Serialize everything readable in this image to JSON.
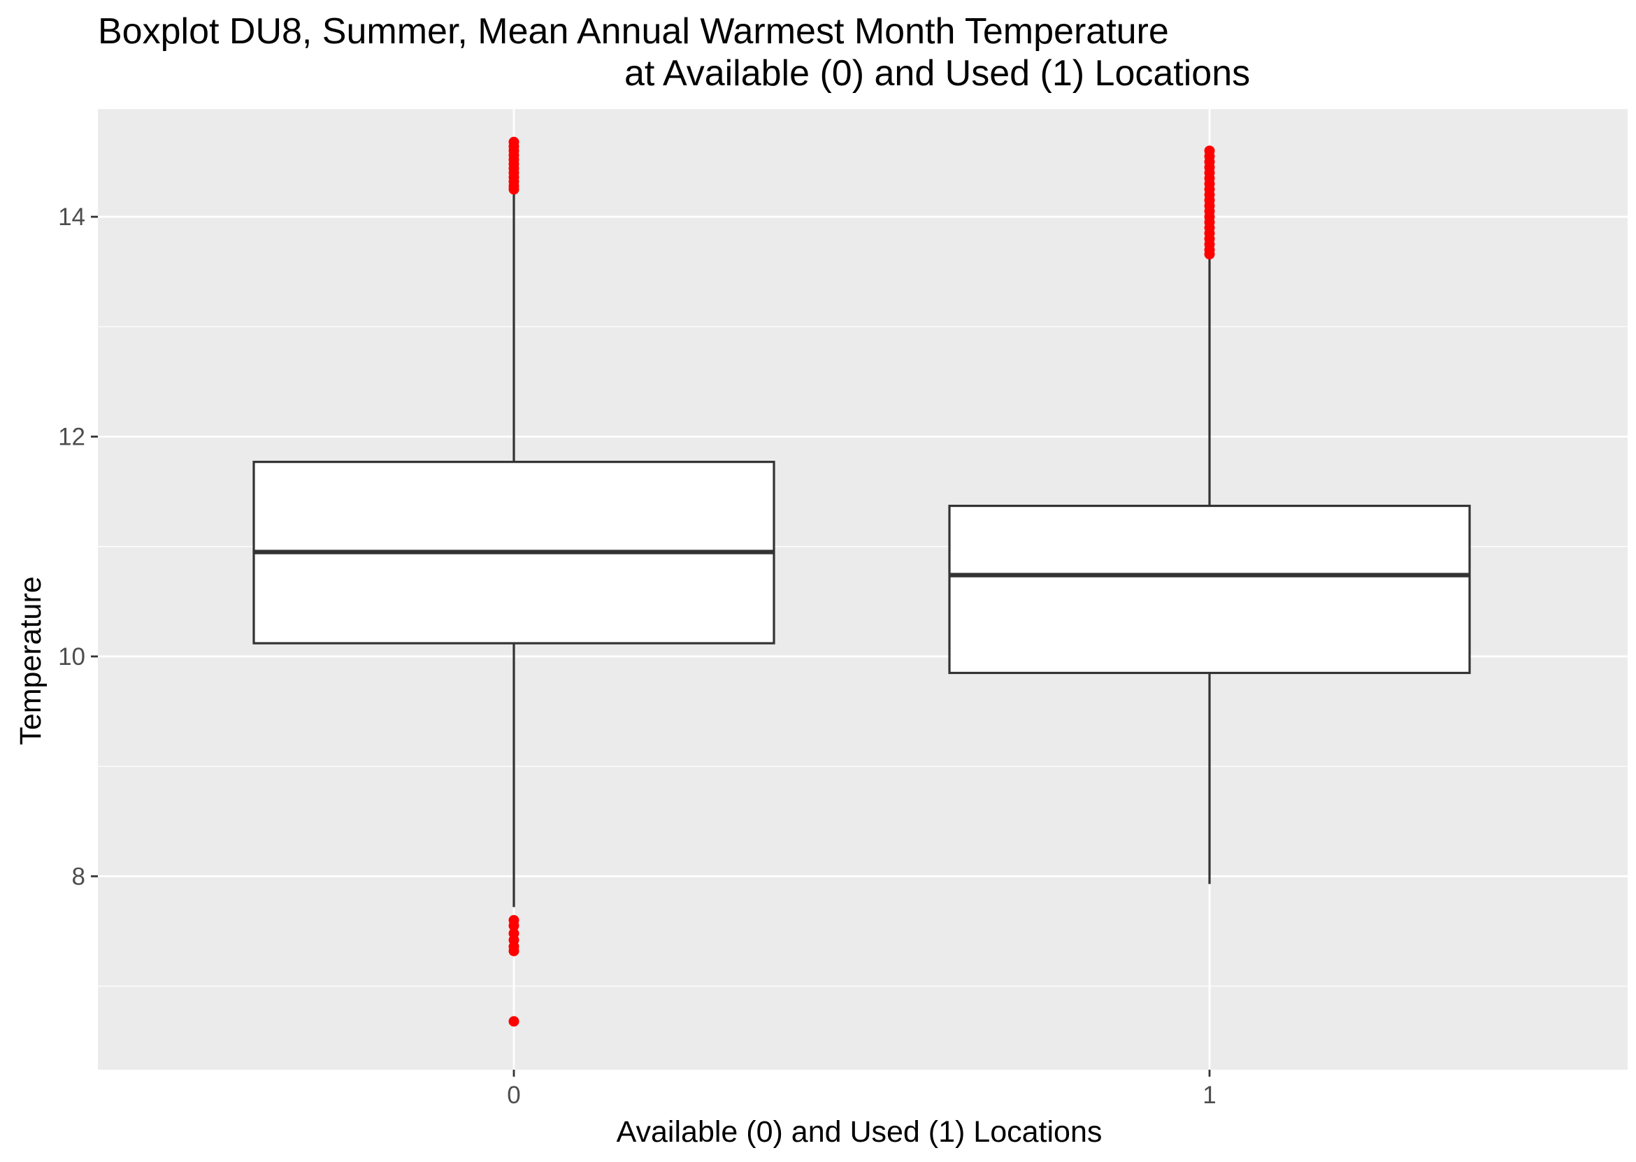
{
  "chart_data": {
    "type": "boxplot",
    "title_line1": "Boxplot DU8, Summer, Mean Annual Warmest Month Temperature",
    "title_line2": "at Available (0) and Used (1) Locations",
    "xlabel": "Available (0) and Used (1) Locations",
    "ylabel": "Temperature",
    "categories": [
      "0",
      "1"
    ],
    "ylim": [
      6.24,
      14.98
    ],
    "yticks": [
      8,
      10,
      12,
      14
    ],
    "grid": true,
    "colors": {
      "panel": "#ebebeb",
      "grid": "#ffffff",
      "box": "#333333",
      "outlier": "#ff0000"
    },
    "boxes": [
      {
        "category": "0",
        "whisker_low": 7.72,
        "q1": 10.12,
        "median": 10.95,
        "q3": 11.77,
        "whisker_high": 14.22,
        "outliers": [
          14.68,
          14.64,
          14.6,
          14.56,
          14.52,
          14.48,
          14.44,
          14.4,
          14.36,
          14.32,
          14.28,
          14.25,
          7.6,
          7.55,
          7.48,
          7.42,
          7.36,
          7.32,
          6.68
        ]
      },
      {
        "category": "1",
        "whisker_low": 7.93,
        "q1": 9.85,
        "median": 10.74,
        "q3": 11.37,
        "whisker_high": 13.63,
        "outliers": [
          14.6,
          14.55,
          14.5,
          14.45,
          14.4,
          14.35,
          14.3,
          14.25,
          14.2,
          14.15,
          14.1,
          14.05,
          14.0,
          13.95,
          13.9,
          13.85,
          13.8,
          13.75,
          13.7,
          13.66
        ]
      }
    ]
  }
}
